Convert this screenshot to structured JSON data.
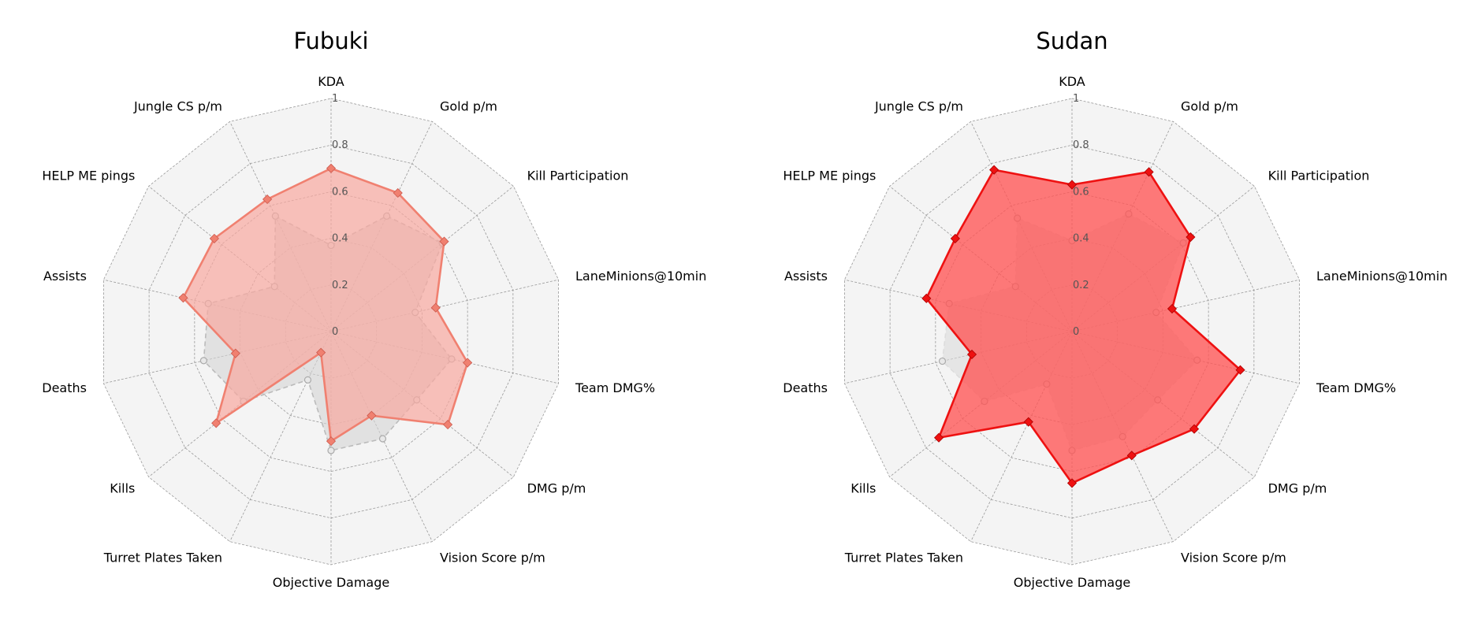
{
  "chart_data": [
    {
      "type": "radar",
      "title": "Fubuki",
      "categories": [
        "KDA",
        "Gold p/m",
        "Kill Participation",
        "LaneMinions@10min",
        "Team DMG%",
        "DMG p/m",
        "Vision Score p/m",
        "Objective Damage",
        "Turret Plates Taken",
        "Kills",
        "Deaths",
        "Assists",
        "HELP ME pings",
        "Jungle CS p/m"
      ],
      "rlim": [
        0,
        1
      ],
      "rticks": [
        "0",
        "0.2",
        "0.4",
        "0.6",
        "0.8",
        "1"
      ],
      "rtick_values": [
        0,
        0.2,
        0.4,
        0.6,
        0.8,
        1.0
      ],
      "grid": true,
      "series": [
        {
          "values": [
            0.7,
            0.66,
            0.62,
            0.46,
            0.6,
            0.64,
            0.4,
            0.47,
            0.1,
            0.63,
            0.42,
            0.65,
            0.64,
            0.63
          ],
          "color": "#f08070",
          "fill": "#f8a8a0",
          "fill_opacity": 0.7,
          "marker": "diamond",
          "linestyle": "solid"
        },
        {
          "values": [
            0.37,
            0.55,
            0.61,
            0.37,
            0.53,
            0.47,
            0.51,
            0.51,
            0.23,
            0.48,
            0.56,
            0.54,
            0.31,
            0.55
          ],
          "color": "#bbbbbb",
          "fill": "#d4d4d4",
          "fill_opacity": 0.6,
          "marker": "circle",
          "linestyle": "dashed"
        }
      ]
    },
    {
      "type": "radar",
      "title": "Sudan",
      "categories": [
        "KDA",
        "Gold p/m",
        "Kill Participation",
        "LaneMinions@10min",
        "Team DMG%",
        "DMG p/m",
        "Vision Score p/m",
        "Objective Damage",
        "Turret Plates Taken",
        "Kills",
        "Deaths",
        "Assists",
        "HELP ME pings",
        "Jungle CS p/m"
      ],
      "rlim": [
        0,
        1
      ],
      "rticks": [
        "0",
        "0.2",
        "0.4",
        "0.6",
        "0.8",
        "1"
      ],
      "rtick_values": [
        0,
        0.2,
        0.4,
        0.6,
        0.8,
        1.0
      ],
      "grid": true,
      "series": [
        {
          "values": [
            0.63,
            0.76,
            0.65,
            0.44,
            0.74,
            0.67,
            0.59,
            0.65,
            0.43,
            0.73,
            0.44,
            0.64,
            0.64,
            0.77
          ],
          "color": "#ee1111",
          "fill": "#ff5555",
          "fill_opacity": 0.78,
          "marker": "diamond",
          "linestyle": "solid"
        },
        {
          "values": [
            0.39,
            0.56,
            0.61,
            0.37,
            0.55,
            0.47,
            0.5,
            0.51,
            0.25,
            0.48,
            0.57,
            0.54,
            0.31,
            0.54
          ],
          "color": "#dddddd",
          "fill": "#d8d8d8",
          "fill_opacity": 0.55,
          "marker": "circle",
          "linestyle": "dashed"
        }
      ]
    }
  ]
}
